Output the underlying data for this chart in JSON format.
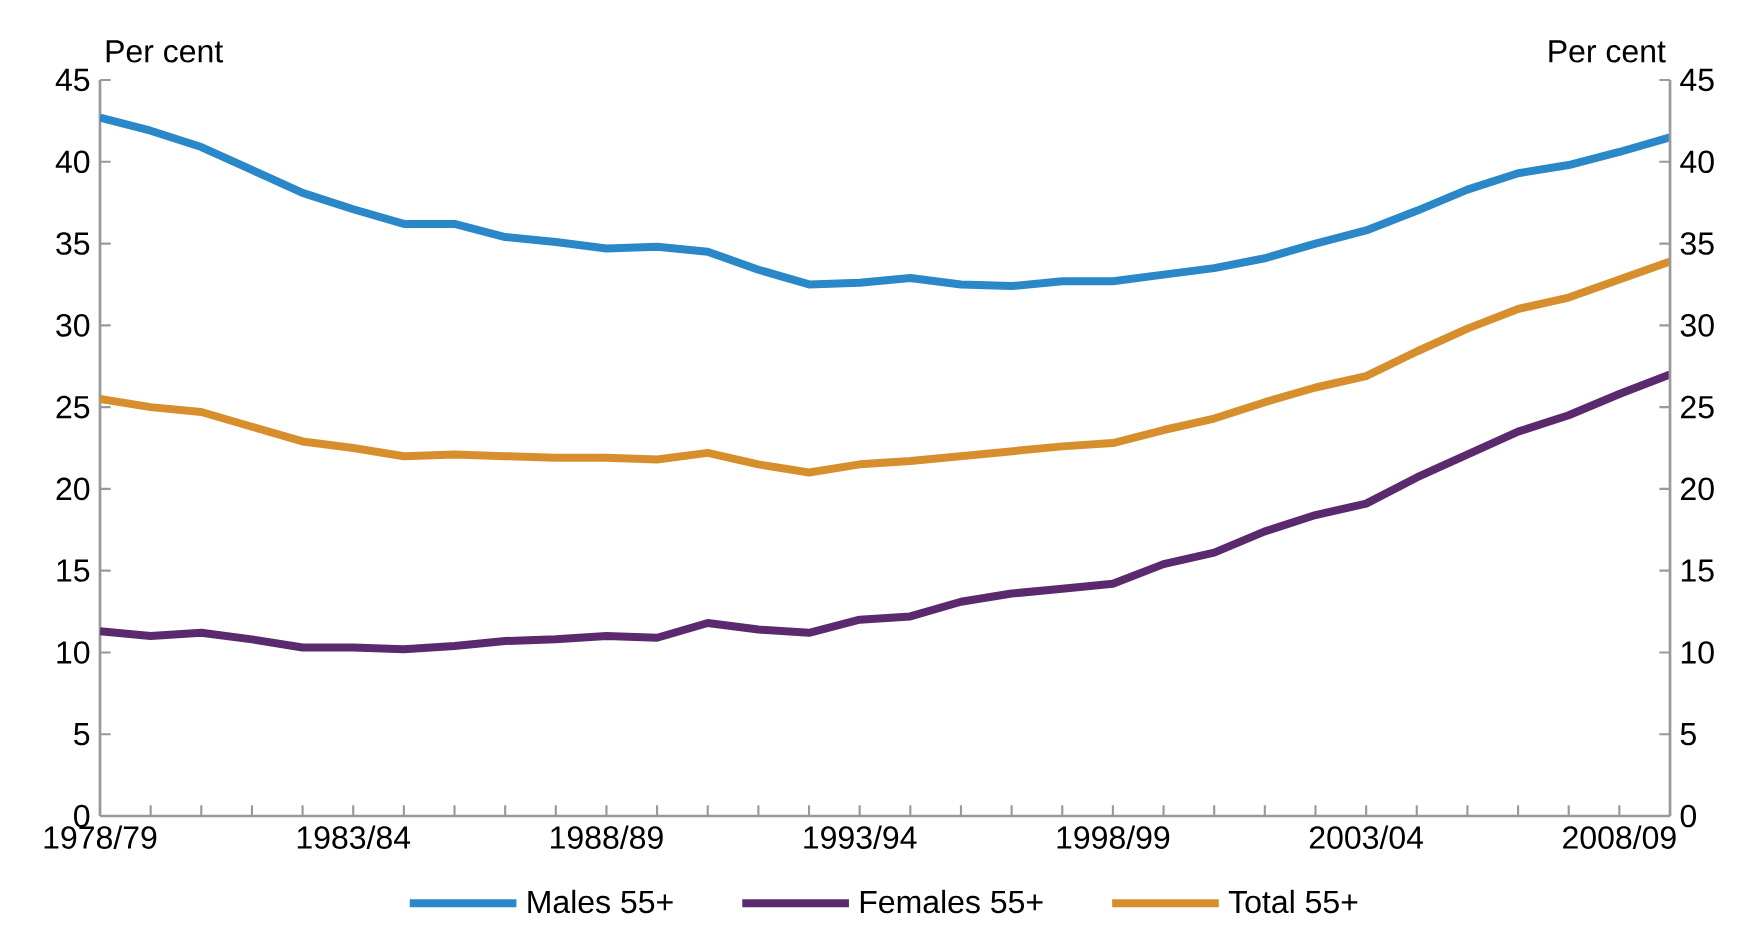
{
  "chart_data": {
    "type": "line",
    "ylabel": "Per cent",
    "y2label": "Per cent",
    "categories": [
      "1978/79",
      null,
      null,
      null,
      null,
      "1983/84",
      null,
      null,
      null,
      null,
      "1988/89",
      null,
      null,
      null,
      null,
      "1993/94",
      null,
      null,
      null,
      null,
      "1998/99",
      null,
      null,
      null,
      null,
      "2003/04",
      null,
      null,
      null,
      null,
      "2008/09",
      null
    ],
    "ylim": [
      0,
      45
    ],
    "yticks": [
      0,
      5,
      10,
      15,
      20,
      25,
      30,
      35,
      40,
      45
    ],
    "y2lim": [
      0,
      45
    ],
    "y2ticks": [
      0,
      5,
      10,
      15,
      20,
      25,
      30,
      35,
      40,
      45
    ],
    "legend": "bottom",
    "series": [
      {
        "name": "Males  55+",
        "color": "#2b88c8",
        "values": [
          42.7,
          41.9,
          40.9,
          39.5,
          38.1,
          37.1,
          36.2,
          36.2,
          35.4,
          35.1,
          34.7,
          34.8,
          34.5,
          33.4,
          32.5,
          32.6,
          32.9,
          32.5,
          32.4,
          32.7,
          32.7,
          33.1,
          33.5,
          34.1,
          35.0,
          35.8,
          37.0,
          38.3,
          39.3,
          39.8,
          40.6,
          41.5
        ]
      },
      {
        "name": "Females  55+",
        "color": "#5b2a6e",
        "values": [
          11.3,
          11.0,
          11.2,
          10.8,
          10.3,
          10.3,
          10.2,
          10.4,
          10.7,
          10.8,
          11.0,
          10.9,
          11.8,
          11.4,
          11.2,
          12.0,
          12.2,
          13.1,
          13.6,
          13.9,
          14.2,
          15.4,
          16.1,
          17.4,
          18.4,
          19.1,
          20.7,
          22.1,
          23.5,
          24.5,
          25.8,
          27.0
        ]
      },
      {
        "name": "Total  55+",
        "color": "#d78f2e",
        "values": [
          25.5,
          25.0,
          24.7,
          23.8,
          22.9,
          22.5,
          22.0,
          22.1,
          22.0,
          21.9,
          21.9,
          21.8,
          22.2,
          21.5,
          21.0,
          21.5,
          21.7,
          22.0,
          22.3,
          22.6,
          22.8,
          23.6,
          24.3,
          25.3,
          26.2,
          26.9,
          28.4,
          29.8,
          31.0,
          31.7,
          32.8,
          33.9
        ]
      }
    ]
  }
}
